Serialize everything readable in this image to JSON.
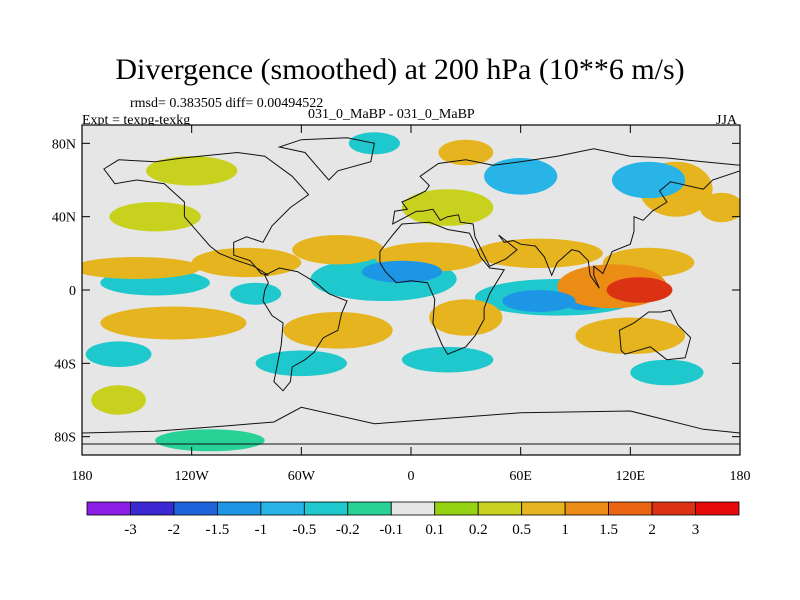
{
  "chart_data": {
    "type": "heatmap",
    "title": "Divergence (smoothed) at 200 hPa (10**6 m/s)",
    "stats_line": "rmsd= 0.383505  diff= 0.00494522",
    "experiment": "Expt = texpg-texkg",
    "cases": "031_0_MaBP - 031_0_MaBP",
    "season": "JJA",
    "xlim": [
      -180,
      180
    ],
    "ylim": [
      -90,
      90
    ],
    "x_ticks": [
      {
        "value": -180,
        "label": "180"
      },
      {
        "value": -120,
        "label": "120W"
      },
      {
        "value": -60,
        "label": "60W"
      },
      {
        "value": 0,
        "label": "0"
      },
      {
        "value": 60,
        "label": "60E"
      },
      {
        "value": 120,
        "label": "120E"
      },
      {
        "value": 180,
        "label": "180"
      }
    ],
    "y_ticks": [
      {
        "value": 80,
        "label": "80N"
      },
      {
        "value": 40,
        "label": "40N"
      },
      {
        "value": 0,
        "label": "0"
      },
      {
        "value": -40,
        "label": "40S"
      },
      {
        "value": -80,
        "label": "80S"
      }
    ],
    "colorbar": {
      "levels": [
        "-3",
        "-2",
        "-1.5",
        "-1",
        "-0.5",
        "-0.2",
        "-0.1",
        "0.1",
        "0.2",
        "0.5",
        "1",
        "1.5",
        "2",
        "3"
      ],
      "colors": [
        "#8a1ee6",
        "#3c28d2",
        "#1e64dc",
        "#1e96e6",
        "#28b4e6",
        "#1ec8cc",
        "#28d296",
        "#e6e6e6",
        "#96d214",
        "#c8d21e",
        "#e6b41e",
        "#eb8c14",
        "#eb6414",
        "#dc3214",
        "#e60a0a"
      ]
    },
    "fields": [
      {
        "lon": 125,
        "lat": 0,
        "rlon": 18,
        "rlat": 7,
        "value": 2.0
      },
      {
        "lon": 110,
        "lat": 2,
        "rlon": 30,
        "rlat": 12,
        "value": 1.2
      },
      {
        "lon": 95,
        "lat": -5,
        "rlon": 14,
        "rlat": 6,
        "value": -1.1
      },
      {
        "lon": 70,
        "lat": -6,
        "rlon": 20,
        "rlat": 6,
        "value": -1.4
      },
      {
        "lon": 80,
        "lat": -4,
        "rlon": 45,
        "rlat": 10,
        "value": -0.4
      },
      {
        "lon": -5,
        "lat": 10,
        "rlon": 22,
        "rlat": 6,
        "value": -1.5
      },
      {
        "lon": -15,
        "lat": 6,
        "rlon": 40,
        "rlat": 12,
        "value": -0.4
      },
      {
        "lon": -140,
        "lat": 4,
        "rlon": 30,
        "rlat": 7,
        "value": -0.3
      },
      {
        "lon": -85,
        "lat": -2,
        "rlon": 14,
        "rlat": 6,
        "value": -0.3
      },
      {
        "lon": -150,
        "lat": 12,
        "rlon": 35,
        "rlat": 6,
        "value": 0.6
      },
      {
        "lon": -90,
        "lat": 15,
        "rlon": 30,
        "rlat": 8,
        "value": 0.5
      },
      {
        "lon": -40,
        "lat": 22,
        "rlon": 25,
        "rlat": 8,
        "value": 0.6
      },
      {
        "lon": 10,
        "lat": 18,
        "rlon": 30,
        "rlat": 8,
        "value": 0.6
      },
      {
        "lon": 70,
        "lat": 20,
        "rlon": 35,
        "rlat": 8,
        "value": 0.5
      },
      {
        "lon": 130,
        "lat": 15,
        "rlon": 25,
        "rlat": 8,
        "value": 0.6
      },
      {
        "lon": 20,
        "lat": 45,
        "rlon": 25,
        "rlat": 10,
        "value": 0.3
      },
      {
        "lon": -140,
        "lat": 40,
        "rlon": 25,
        "rlat": 8,
        "value": 0.3
      },
      {
        "lon": -130,
        "lat": -18,
        "rlon": 40,
        "rlat": 9,
        "value": 0.8
      },
      {
        "lon": -40,
        "lat": -22,
        "rlon": 30,
        "rlat": 10,
        "value": 0.5
      },
      {
        "lon": 30,
        "lat": -15,
        "rlon": 20,
        "rlat": 10,
        "value": 0.6
      },
      {
        "lon": 120,
        "lat": -25,
        "rlon": 30,
        "rlat": 10,
        "value": 0.5
      },
      {
        "lon": -160,
        "lat": -35,
        "rlon": 18,
        "rlat": 7,
        "value": -0.3
      },
      {
        "lon": -60,
        "lat": -40,
        "rlon": 25,
        "rlat": 7,
        "value": -0.3
      },
      {
        "lon": 20,
        "lat": -38,
        "rlon": 25,
        "rlat": 7,
        "value": -0.3
      },
      {
        "lon": 140,
        "lat": -45,
        "rlon": 20,
        "rlat": 7,
        "value": -0.3
      },
      {
        "lon": -160,
        "lat": -60,
        "rlon": 15,
        "rlat": 8,
        "value": 0.2
      },
      {
        "lon": -110,
        "lat": -82,
        "rlon": 30,
        "rlat": 6,
        "value": -0.2
      },
      {
        "lon": -20,
        "lat": 80,
        "rlon": 14,
        "rlat": 6,
        "value": -0.3
      },
      {
        "lon": 30,
        "lat": 75,
        "rlon": 15,
        "rlat": 7,
        "value": 0.5
      },
      {
        "lon": 60,
        "lat": 62,
        "rlon": 20,
        "rlat": 10,
        "value": -0.6
      },
      {
        "lon": 130,
        "lat": 60,
        "rlon": 20,
        "rlat": 10,
        "value": -0.7
      },
      {
        "lon": 145,
        "lat": 55,
        "rlon": 20,
        "rlat": 15,
        "value": 0.5
      },
      {
        "lon": -120,
        "lat": 65,
        "rlon": 25,
        "rlat": 8,
        "value": 0.4
      },
      {
        "lon": 170,
        "lat": 45,
        "rlon": 12,
        "rlat": 8,
        "value": 0.5
      }
    ],
    "continents": [
      {
        "name": "north-america",
        "points": [
          [
            -168,
            66
          ],
          [
            -160,
            71
          ],
          [
            -140,
            70
          ],
          [
            -125,
            72
          ],
          [
            -95,
            75
          ],
          [
            -80,
            73
          ],
          [
            -65,
            62
          ],
          [
            -56,
            52
          ],
          [
            -66,
            45
          ],
          [
            -76,
            35
          ],
          [
            -81,
            26
          ],
          [
            -90,
            29
          ],
          [
            -97,
            26
          ],
          [
            -97,
            19
          ],
          [
            -88,
            16
          ],
          [
            -82,
            9
          ],
          [
            -78,
            8
          ],
          [
            -86,
            13
          ],
          [
            -95,
            16
          ],
          [
            -105,
            20
          ],
          [
            -110,
            24
          ],
          [
            -117,
            32
          ],
          [
            -124,
            40
          ],
          [
            -124,
            48
          ],
          [
            -135,
            58
          ],
          [
            -150,
            60
          ],
          [
            -162,
            58
          ],
          [
            -165,
            62
          ]
        ]
      },
      {
        "name": "south-america",
        "points": [
          [
            -80,
            8
          ],
          [
            -72,
            12
          ],
          [
            -62,
            10
          ],
          [
            -52,
            4
          ],
          [
            -45,
            -2
          ],
          [
            -35,
            -6
          ],
          [
            -38,
            -13
          ],
          [
            -40,
            -22
          ],
          [
            -48,
            -26
          ],
          [
            -53,
            -34
          ],
          [
            -58,
            -38
          ],
          [
            -65,
            -42
          ],
          [
            -66,
            -50
          ],
          [
            -70,
            -55
          ],
          [
            -75,
            -50
          ],
          [
            -73,
            -40
          ],
          [
            -71,
            -30
          ],
          [
            -70,
            -18
          ],
          [
            -76,
            -14
          ],
          [
            -81,
            -6
          ],
          [
            -80,
            0
          ],
          [
            -78,
            4
          ]
        ]
      },
      {
        "name": "africa",
        "points": [
          [
            -17,
            21
          ],
          [
            -10,
            30
          ],
          [
            -5,
            36
          ],
          [
            10,
            37
          ],
          [
            20,
            33
          ],
          [
            32,
            31
          ],
          [
            34,
            27
          ],
          [
            38,
            18
          ],
          [
            43,
            12
          ],
          [
            51,
            11
          ],
          [
            43,
            -2
          ],
          [
            40,
            -10
          ],
          [
            40,
            -16
          ],
          [
            35,
            -25
          ],
          [
            30,
            -31
          ],
          [
            20,
            -35
          ],
          [
            17,
            -30
          ],
          [
            12,
            -18
          ],
          [
            13,
            -5
          ],
          [
            9,
            4
          ],
          [
            0,
            5
          ],
          [
            -8,
            4
          ],
          [
            -14,
            10
          ],
          [
            -17,
            15
          ]
        ]
      },
      {
        "name": "eurasia",
        "points": [
          [
            -10,
            36
          ],
          [
            -9,
            43
          ],
          [
            -2,
            44
          ],
          [
            -5,
            48
          ],
          [
            2,
            51
          ],
          [
            8,
            54
          ],
          [
            10,
            57
          ],
          [
            5,
            62
          ],
          [
            15,
            69
          ],
          [
            30,
            71
          ],
          [
            45,
            68
          ],
          [
            60,
            70
          ],
          [
            80,
            73
          ],
          [
            100,
            77
          ],
          [
            120,
            73
          ],
          [
            140,
            72
          ],
          [
            160,
            70
          ],
          [
            180,
            68
          ],
          [
            180,
            65
          ],
          [
            165,
            60
          ],
          [
            160,
            55
          ],
          [
            142,
            59
          ],
          [
            136,
            54
          ],
          [
            140,
            48
          ],
          [
            132,
            43
          ],
          [
            127,
            38
          ],
          [
            122,
            40
          ],
          [
            122,
            32
          ],
          [
            120,
            25
          ],
          [
            110,
            21
          ],
          [
            108,
            16
          ],
          [
            105,
            9
          ],
          [
            100,
            13
          ],
          [
            100,
            8
          ],
          [
            103,
            1
          ],
          [
            98,
            8
          ],
          [
            97,
            16
          ],
          [
            92,
            21
          ],
          [
            88,
            22
          ],
          [
            80,
            15
          ],
          [
            77,
            8
          ],
          [
            73,
            18
          ],
          [
            68,
            24
          ],
          [
            60,
            25
          ],
          [
            56,
            27
          ],
          [
            51,
            26
          ],
          [
            48,
            30
          ],
          [
            58,
            22
          ],
          [
            52,
            17
          ],
          [
            43,
            13
          ],
          [
            35,
            29
          ],
          [
            34,
            36
          ],
          [
            27,
            37
          ],
          [
            26,
            41
          ],
          [
            20,
            40
          ],
          [
            16,
            38
          ],
          [
            12,
            44
          ],
          [
            6,
            43
          ],
          [
            3,
            43
          ]
        ]
      },
      {
        "name": "greenland",
        "points": [
          [
            -45,
            60
          ],
          [
            -40,
            65
          ],
          [
            -22,
            70
          ],
          [
            -20,
            80
          ],
          [
            -35,
            83
          ],
          [
            -60,
            82
          ],
          [
            -72,
            78
          ],
          [
            -58,
            75
          ],
          [
            -52,
            68
          ]
        ]
      },
      {
        "name": "australia",
        "points": [
          [
            114,
            -22
          ],
          [
            122,
            -18
          ],
          [
            130,
            -12
          ],
          [
            137,
            -12
          ],
          [
            142,
            -11
          ],
          [
            146,
            -19
          ],
          [
            153,
            -26
          ],
          [
            150,
            -37
          ],
          [
            140,
            -38
          ],
          [
            131,
            -31
          ],
          [
            117,
            -35
          ],
          [
            115,
            -33
          ]
        ]
      },
      {
        "name": "antarctica",
        "points": [
          [
            -180,
            -84
          ],
          [
            180,
            -84
          ],
          [
            180,
            -78
          ],
          [
            160,
            -76
          ],
          [
            120,
            -66
          ],
          [
            60,
            -67
          ],
          [
            20,
            -70
          ],
          [
            -20,
            -73
          ],
          [
            -60,
            -64
          ],
          [
            -75,
            -72
          ],
          [
            -100,
            -74
          ],
          [
            -140,
            -77
          ],
          [
            -180,
            -78
          ]
        ]
      }
    ]
  }
}
